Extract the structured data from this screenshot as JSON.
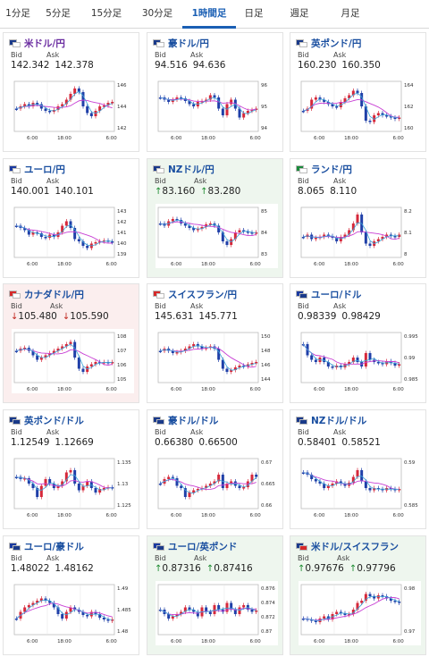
{
  "tabs": [
    {
      "label": "1分足",
      "active": false,
      "w": 40
    },
    {
      "label": "5分足",
      "active": false,
      "w": 50
    },
    {
      "label": "15分足",
      "active": false,
      "w": 58
    },
    {
      "label": "30分足",
      "active": false,
      "w": 56
    },
    {
      "label": "1時間足",
      "active": true,
      "w": 60
    },
    {
      "label": "日足",
      "active": false,
      "w": 40
    },
    {
      "label": "週足",
      "active": false,
      "w": 62
    },
    {
      "label": "月足",
      "active": false,
      "w": 52
    }
  ],
  "labels": {
    "bid": "Bid",
    "ask": "Ask"
  },
  "colors": {
    "up_bg": "#eef6ee",
    "down_bg": "#fbeeee",
    "up_arrow": "#1a8a2e",
    "down_arrow": "#c0241c",
    "candle_up": "#d6283a",
    "candle_down": "#1f3fa8",
    "ma_long": "#c83fd4",
    "ma_short": "#3aa3d8"
  },
  "cards": [
    {
      "pair": "米ドル/円",
      "purple": true,
      "flag": [
        "#1a3a8a",
        "#ffffff"
      ],
      "bid": "142.342",
      "ask": "142.378",
      "state": "none",
      "chart": {
        "yticks": [
          "146",
          "144",
          "142"
        ],
        "xticks": [
          "6:00",
          "18:00",
          "6:00"
        ]
      }
    },
    {
      "pair": "豪ドル/円",
      "flag": [
        "#1a3a8a",
        "#ffffff"
      ],
      "bid": "94.516",
      "ask": "94.636",
      "state": "none",
      "chart": {
        "yticks": [
          "96",
          "95",
          "94"
        ],
        "xticks": [
          "6:00",
          "18:00",
          "6:00"
        ]
      }
    },
    {
      "pair": "英ポンド/円",
      "flag": [
        "#1a3a8a",
        "#ffffff"
      ],
      "bid": "160.230",
      "ask": "160.350",
      "state": "none",
      "chart": {
        "yticks": [
          "164",
          "162",
          "160"
        ],
        "xticks": [
          "6:00",
          "18:00",
          "6:00"
        ]
      }
    },
    {
      "pair": "ユーロ/円",
      "flag": [
        "#1a3aa0",
        "#ffffff"
      ],
      "bid": "140.001",
      "ask": "140.101",
      "state": "none",
      "chart": {
        "yticks": [
          "143",
          "142",
          "141",
          "140",
          "139"
        ],
        "xticks": [
          "6:00",
          "18:00",
          "6:00"
        ]
      }
    },
    {
      "pair": "NZドル/円",
      "flag": [
        "#1a3a8a",
        "#ffffff"
      ],
      "bid": "83.160",
      "ask": "83.280",
      "state": "up",
      "chart": {
        "yticks": [
          "85",
          "84",
          "83"
        ],
        "xticks": [
          "6:00",
          "18:00",
          "6:00"
        ]
      }
    },
    {
      "pair": "ランド/円",
      "flag": [
        "#1a8a3a",
        "#ffffff"
      ],
      "bid": "8.065",
      "ask": "8.110",
      "state": "none",
      "chart": {
        "yticks": [
          "8.2",
          "8.1",
          "8"
        ],
        "xticks": [
          "6:00",
          "18:00",
          "6:00"
        ]
      }
    },
    {
      "pair": "カナダドル/円",
      "flag": [
        "#d62a2a",
        "#ffffff"
      ],
      "bid": "105.480",
      "ask": "105.590",
      "state": "down",
      "chart": {
        "yticks": [
          "108",
          "107",
          "106",
          "105"
        ],
        "xticks": [
          "6:00",
          "18:00",
          "6:00"
        ]
      }
    },
    {
      "pair": "スイスフラン/円",
      "flag": [
        "#d62a2a",
        "#ffffff"
      ],
      "bid": "145.631",
      "ask": "145.771",
      "state": "none",
      "chart": {
        "yticks": [
          "150",
          "148",
          "146",
          "144"
        ],
        "xticks": [
          "6:00",
          "18:00",
          "6:00"
        ]
      }
    },
    {
      "pair": "ユーロ/ドル",
      "flag": [
        "#1a3aa0",
        "#1a3a8a"
      ],
      "bid": "0.98339",
      "ask": "0.98429",
      "state": "none",
      "chart": {
        "yticks": [
          "0.995",
          "0.99",
          "0.985"
        ],
        "xticks": [
          "6:00",
          "18:00",
          "6:00"
        ]
      }
    },
    {
      "pair": "英ポンド/ドル",
      "flag": [
        "#1a3a8a",
        "#1a3a8a"
      ],
      "bid": "1.12549",
      "ask": "1.12669",
      "state": "none",
      "chart": {
        "yticks": [
          "1.135",
          "1.13",
          "1.125"
        ],
        "xticks": [
          "6:00",
          "18:00",
          "6:00"
        ]
      }
    },
    {
      "pair": "豪ドル/ドル",
      "flag": [
        "#1a3a8a",
        "#1a3a8a"
      ],
      "bid": "0.66380",
      "ask": "0.66500",
      "state": "none",
      "chart": {
        "yticks": [
          "0.67",
          "0.665",
          "0.66"
        ],
        "xticks": [
          "6:00",
          "18:00",
          "6:00"
        ]
      }
    },
    {
      "pair": "NZドル/ドル",
      "flag": [
        "#1a3a8a",
        "#1a3a8a"
      ],
      "bid": "0.58401",
      "ask": "0.58521",
      "state": "none",
      "chart": {
        "yticks": [
          "0.59",
          "0.585"
        ],
        "xticks": [
          "6:00",
          "18:00",
          "6:00"
        ]
      }
    },
    {
      "pair": "ユーロ/豪ドル",
      "flag": [
        "#1a3aa0",
        "#1a3a8a"
      ],
      "bid": "1.48022",
      "ask": "1.48162",
      "state": "none",
      "chart": {
        "yticks": [
          "1.49",
          "1.485",
          "1.48"
        ],
        "xticks": [
          "6:00",
          "18:00",
          "6:00"
        ]
      }
    },
    {
      "pair": "ユーロ/英ポンド",
      "flag": [
        "#1a3aa0",
        "#1a3a8a"
      ],
      "bid": "0.87316",
      "ask": "0.87416",
      "state": "up",
      "chart": {
        "yticks": [
          "0.876",
          "0.874",
          "0.872",
          "0.87"
        ],
        "xticks": [
          "6:00",
          "18:00",
          "6:00"
        ]
      }
    },
    {
      "pair": "米ドル/スイスフラン",
      "flag": [
        "#1a3a8a",
        "#d62a2a"
      ],
      "bid": "0.97676",
      "ask": "0.97796",
      "state": "up",
      "chart": {
        "yticks": [
          "0.98",
          "0.97"
        ],
        "xticks": [
          "6:00",
          "18:00",
          "6:00"
        ]
      }
    }
  ]
}
